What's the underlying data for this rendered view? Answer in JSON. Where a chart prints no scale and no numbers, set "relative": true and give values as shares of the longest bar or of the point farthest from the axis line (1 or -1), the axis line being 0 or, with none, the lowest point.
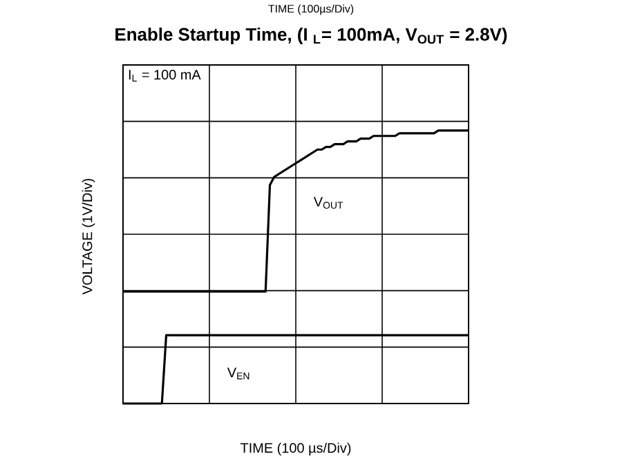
{
  "chart_data": {
    "type": "line",
    "title": "Enable Startup Time, (I $_{L}$= 100mA, V$_{OUT}$ = 2.8V)",
    "xlabel": "TIME (100 µs/Div)",
    "ylabel": "VOLTAGE (1V/Div)",
    "annotations": [
      "TIME (100µs/Div)",
      "I$_{L}$ = 100 mA"
    ],
    "relative": true,
    "grid": true,
    "categories": [
      null,
      null,
      null,
      null,
      null,
      null,
      null,
      null,
      null,
      null,
      null,
      null,
      null,
      null,
      null,
      null,
      null,
      null,
      null,
      null,
      null,
      null,
      null,
      null,
      null,
      null,
      null,
      null,
      null,
      null,
      null,
      null,
      null,
      null,
      null,
      null,
      null,
      null,
      null,
      null,
      null,
      null,
      null,
      null,
      null,
      null,
      null,
      null,
      null,
      null,
      null,
      null,
      null,
      null,
      null,
      null,
      null,
      null,
      null,
      null,
      null,
      null,
      null,
      null,
      null,
      null,
      null,
      null,
      null,
      null,
      null,
      null,
      null,
      null,
      null,
      null,
      null,
      null,
      null,
      null,
      null
    ],
    "series": [
      {
        "name": "V$_{OUT}$",
        "color": "#000000",
        "values": [
          0.41,
          0.41,
          0.41,
          0.41,
          0.41,
          0.41,
          0.41,
          0.41,
          0.41,
          0.41,
          0.41,
          0.41,
          0.41,
          0.41,
          0.41,
          0.41,
          0.41,
          0.41,
          0.41,
          0.41,
          0.41,
          0.41,
          0.41,
          0.41,
          0.41,
          0.41,
          0.41,
          0.41,
          0.41,
          0.41,
          0.41,
          0.41,
          0.41,
          0.41,
          0.8,
          0.83,
          0.84,
          0.85,
          0.86,
          0.87,
          0.88,
          0.89,
          0.9,
          0.91,
          0.92,
          0.93,
          0.93,
          0.94,
          0.94,
          0.95,
          0.95,
          0.95,
          0.96,
          0.96,
          0.96,
          0.97,
          0.97,
          0.97,
          0.98,
          0.98,
          0.98,
          0.98,
          0.98,
          0.98,
          0.99,
          0.99,
          0.99,
          0.99,
          0.99,
          0.99,
          0.99,
          0.99,
          0.99,
          1,
          1,
          1,
          1,
          1,
          1,
          1,
          1
        ]
      },
      {
        "name": "V$_{EN}$",
        "color": "#000000",
        "values": [
          0,
          0,
          0,
          0,
          0,
          0,
          0,
          0,
          0,
          0,
          0.25,
          0.25,
          0.25,
          0.25,
          0.25,
          0.25,
          0.25,
          0.25,
          0.25,
          0.25,
          0.25,
          0.25,
          0.25,
          0.25,
          0.25,
          0.25,
          0.25,
          0.25,
          0.25,
          0.25,
          0.25,
          0.25,
          0.25,
          0.25,
          0.25,
          0.25,
          0.25,
          0.25,
          0.25,
          0.25,
          0.25,
          0.25,
          0.25,
          0.25,
          0.25,
          0.25,
          0.25,
          0.25,
          0.25,
          0.25,
          0.25,
          0.25,
          0.25,
          0.25,
          0.25,
          0.25,
          0.25,
          0.25,
          0.25,
          0.25,
          0.25,
          0.25,
          0.25,
          0.25,
          0.25,
          0.25,
          0.25,
          0.25,
          0.25,
          0.25,
          0.25,
          0.25,
          0.25,
          0.25,
          0.25,
          0.25,
          0.25,
          0.25,
          0.25,
          0.25,
          0.25
        ]
      }
    ]
  }
}
